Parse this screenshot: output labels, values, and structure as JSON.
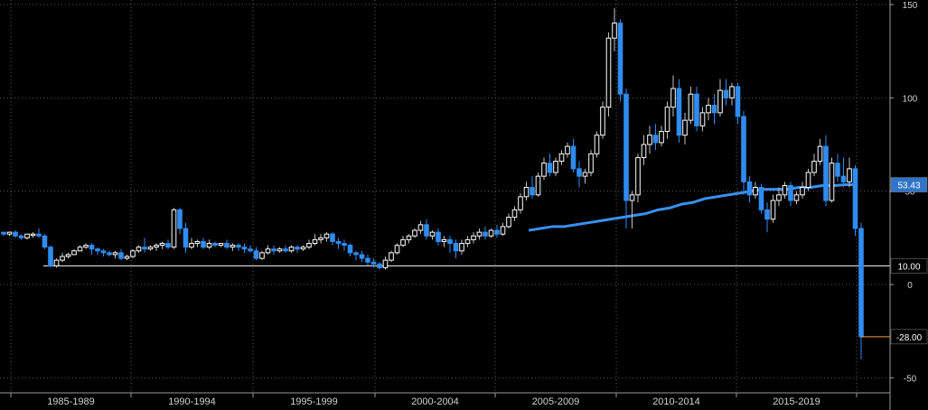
{
  "chart_data": {
    "type": "candlestick",
    "x_period_labels": [
      "1985-1989",
      "1990-1994",
      "1995-1999",
      "2000-2004",
      "2005-2009",
      "2010-2014",
      "2015-2019"
    ],
    "y_ticks": [
      -50,
      0,
      50,
      100,
      150
    ],
    "ylim": [
      -55,
      152
    ],
    "grid": true,
    "colors": {
      "up": "#ffffff",
      "down": "#2f8cf0",
      "ma": "#3a8ff0",
      "ref": "#ffffff",
      "last": "#f0a040",
      "background": "#000000",
      "grid": "#5a5a5a"
    },
    "reference_line": {
      "value": 10.0,
      "label": "10.00"
    },
    "ma_label": {
      "value": 53.43,
      "label": "53.43"
    },
    "last_label": {
      "value": -28.0,
      "label": "-28.00"
    },
    "series": [
      {
        "type": "candles",
        "values": [
          [
            28,
            28,
            27,
            26
          ],
          [
            27,
            28,
            28,
            26
          ],
          [
            28,
            29,
            26,
            25
          ],
          [
            26,
            27,
            25,
            24
          ],
          [
            25,
            26,
            27,
            24
          ],
          [
            27,
            28,
            27,
            25
          ],
          [
            27,
            30,
            26,
            25
          ],
          [
            26,
            27,
            20,
            19
          ],
          [
            20,
            21,
            10,
            9
          ],
          [
            10,
            14,
            13,
            9
          ],
          [
            13,
            17,
            15,
            12
          ],
          [
            15,
            17,
            16,
            14
          ],
          [
            16,
            19,
            18,
            16
          ],
          [
            18,
            21,
            20,
            18
          ],
          [
            20,
            22,
            21,
            19
          ],
          [
            21,
            22,
            19,
            16
          ],
          [
            19,
            20,
            18,
            16
          ],
          [
            18,
            19,
            17,
            15
          ],
          [
            17,
            18,
            16,
            15
          ],
          [
            16,
            18,
            17,
            14
          ],
          [
            17,
            19,
            14,
            13
          ],
          [
            14,
            16,
            15,
            13
          ],
          [
            15,
            19,
            18,
            14
          ],
          [
            18,
            21,
            20,
            17
          ],
          [
            20,
            25,
            19,
            17
          ],
          [
            19,
            21,
            20,
            18
          ],
          [
            20,
            22,
            21,
            18
          ],
          [
            21,
            23,
            22,
            19
          ],
          [
            22,
            24,
            20,
            19
          ],
          [
            20,
            41,
            40,
            19
          ],
          [
            40,
            41,
            30,
            27
          ],
          [
            30,
            33,
            20,
            17
          ],
          [
            20,
            25,
            22,
            19
          ],
          [
            22,
            24,
            23,
            20
          ],
          [
            23,
            25,
            20,
            19
          ],
          [
            20,
            24,
            22,
            19
          ],
          [
            22,
            23,
            21,
            20
          ],
          [
            21,
            22,
            22,
            20
          ],
          [
            22,
            24,
            20,
            19
          ],
          [
            20,
            22,
            21,
            18
          ],
          [
            21,
            22,
            20,
            18
          ],
          [
            20,
            22,
            19,
            17
          ],
          [
            19,
            21,
            18,
            17
          ],
          [
            18,
            20,
            14,
            13
          ],
          [
            14,
            18,
            17,
            13
          ],
          [
            17,
            21,
            19,
            16
          ],
          [
            19,
            21,
            18,
            16
          ],
          [
            18,
            20,
            19,
            17
          ],
          [
            19,
            21,
            18,
            17
          ],
          [
            18,
            21,
            20,
            17
          ],
          [
            20,
            21,
            19,
            17
          ],
          [
            19,
            21,
            20,
            18
          ],
          [
            20,
            24,
            22,
            19
          ],
          [
            22,
            27,
            24,
            21
          ],
          [
            24,
            27,
            25,
            22
          ],
          [
            25,
            28,
            27,
            23
          ],
          [
            27,
            28,
            23,
            21
          ],
          [
            23,
            25,
            22,
            19
          ],
          [
            22,
            24,
            21,
            18
          ],
          [
            21,
            22,
            17,
            15
          ],
          [
            17,
            18,
            16,
            13
          ],
          [
            16,
            18,
            14,
            12
          ],
          [
            14,
            16,
            12,
            10
          ],
          [
            12,
            14,
            11,
            9
          ],
          [
            11,
            12,
            9,
            8
          ],
          [
            9,
            15,
            13,
            8
          ],
          [
            13,
            18,
            17,
            12
          ],
          [
            17,
            22,
            21,
            16
          ],
          [
            21,
            26,
            24,
            20
          ],
          [
            24,
            27,
            26,
            22
          ],
          [
            26,
            30,
            29,
            25
          ],
          [
            29,
            34,
            32,
            27
          ],
          [
            32,
            35,
            26,
            24
          ],
          [
            26,
            29,
            28,
            24
          ],
          [
            28,
            30,
            23,
            21
          ],
          [
            23,
            26,
            24,
            20
          ],
          [
            24,
            26,
            22,
            17
          ],
          [
            22,
            24,
            18,
            14
          ],
          [
            18,
            24,
            22,
            16
          ],
          [
            22,
            26,
            24,
            20
          ],
          [
            24,
            28,
            26,
            22
          ],
          [
            26,
            30,
            28,
            24
          ],
          [
            28,
            31,
            26,
            24
          ],
          [
            26,
            30,
            29,
            25
          ],
          [
            29,
            32,
            27,
            25
          ],
          [
            27,
            33,
            31,
            26
          ],
          [
            31,
            38,
            36,
            30
          ],
          [
            36,
            42,
            40,
            34
          ],
          [
            40,
            49,
            47,
            38
          ],
          [
            47,
            55,
            52,
            45
          ],
          [
            52,
            58,
            48,
            46
          ],
          [
            48,
            60,
            58,
            47
          ],
          [
            58,
            68,
            65,
            56
          ],
          [
            65,
            70,
            60,
            58
          ],
          [
            60,
            68,
            66,
            58
          ],
          [
            66,
            72,
            70,
            64
          ],
          [
            70,
            76,
            74,
            68
          ],
          [
            74,
            78,
            62,
            60
          ],
          [
            62,
            66,
            58,
            52
          ],
          [
            58,
            62,
            60,
            54
          ],
          [
            60,
            72,
            70,
            58
          ],
          [
            70,
            82,
            80,
            68
          ],
          [
            80,
            98,
            95,
            78
          ],
          [
            95,
            135,
            132,
            90
          ],
          [
            132,
            148,
            140,
            125
          ],
          [
            140,
            142,
            102,
            98
          ],
          [
            102,
            105,
            45,
            30
          ],
          [
            45,
            50,
            48,
            30
          ],
          [
            48,
            70,
            68,
            44
          ],
          [
            68,
            80,
            75,
            64
          ],
          [
            75,
            85,
            80,
            70
          ],
          [
            80,
            86,
            76,
            72
          ],
          [
            76,
            85,
            82,
            74
          ],
          [
            82,
            98,
            95,
            78
          ],
          [
            95,
            112,
            105,
            90
          ],
          [
            105,
            110,
            80,
            76
          ],
          [
            80,
            92,
            88,
            75
          ],
          [
            88,
            106,
            102,
            86
          ],
          [
            102,
            106,
            85,
            82
          ],
          [
            85,
            95,
            92,
            82
          ],
          [
            92,
            100,
            96,
            88
          ],
          [
            96,
            102,
            92,
            86
          ],
          [
            92,
            110,
            104,
            90
          ],
          [
            104,
            110,
            100,
            96
          ],
          [
            100,
            108,
            106,
            96
          ],
          [
            106,
            108,
            90,
            86
          ],
          [
            90,
            93,
            55,
            48
          ],
          [
            55,
            58,
            48,
            44
          ],
          [
            48,
            55,
            52,
            46
          ],
          [
            52,
            54,
            40,
            38
          ],
          [
            40,
            44,
            35,
            28
          ],
          [
            35,
            48,
            45,
            33
          ],
          [
            45,
            52,
            48,
            42
          ],
          [
            48,
            55,
            53,
            46
          ],
          [
            53,
            55,
            45,
            42
          ],
          [
            45,
            50,
            48,
            43
          ],
          [
            48,
            55,
            52,
            46
          ],
          [
            52,
            62,
            60,
            50
          ],
          [
            60,
            70,
            66,
            58
          ],
          [
            66,
            78,
            74,
            64
          ],
          [
            74,
            80,
            45,
            42
          ],
          [
            45,
            68,
            65,
            44
          ],
          [
            65,
            70,
            58,
            55
          ],
          [
            58,
            68,
            55,
            52
          ],
          [
            55,
            68,
            62,
            52
          ],
          [
            62,
            64,
            30,
            26
          ],
          [
            30,
            33,
            -28,
            -40
          ]
        ]
      },
      {
        "type": "line",
        "values": [
          [
            89.4,
            29
          ],
          [
            91.4,
            30
          ],
          [
            93.4,
            31
          ],
          [
            95.4,
            31
          ],
          [
            97.4,
            32
          ],
          [
            99.4,
            33
          ],
          [
            101.4,
            34
          ],
          [
            103.4,
            35
          ],
          [
            105.4,
            36
          ],
          [
            107.4,
            37
          ],
          [
            109.4,
            38
          ],
          [
            111.4,
            40
          ],
          [
            113.4,
            41
          ],
          [
            115.4,
            43
          ],
          [
            117.4,
            44
          ],
          [
            119.4,
            46
          ],
          [
            121.4,
            47
          ],
          [
            123.4,
            48
          ],
          [
            125.4,
            49
          ],
          [
            127.4,
            50
          ],
          [
            129.4,
            51
          ],
          [
            131.4,
            51
          ],
          [
            133.4,
            51
          ],
          [
            135.4,
            52
          ],
          [
            137.4,
            52
          ],
          [
            139.4,
            53
          ],
          [
            141.4,
            53
          ],
          [
            143.4,
            53.5
          ],
          [
            145.4,
            53.43
          ]
        ]
      }
    ]
  }
}
